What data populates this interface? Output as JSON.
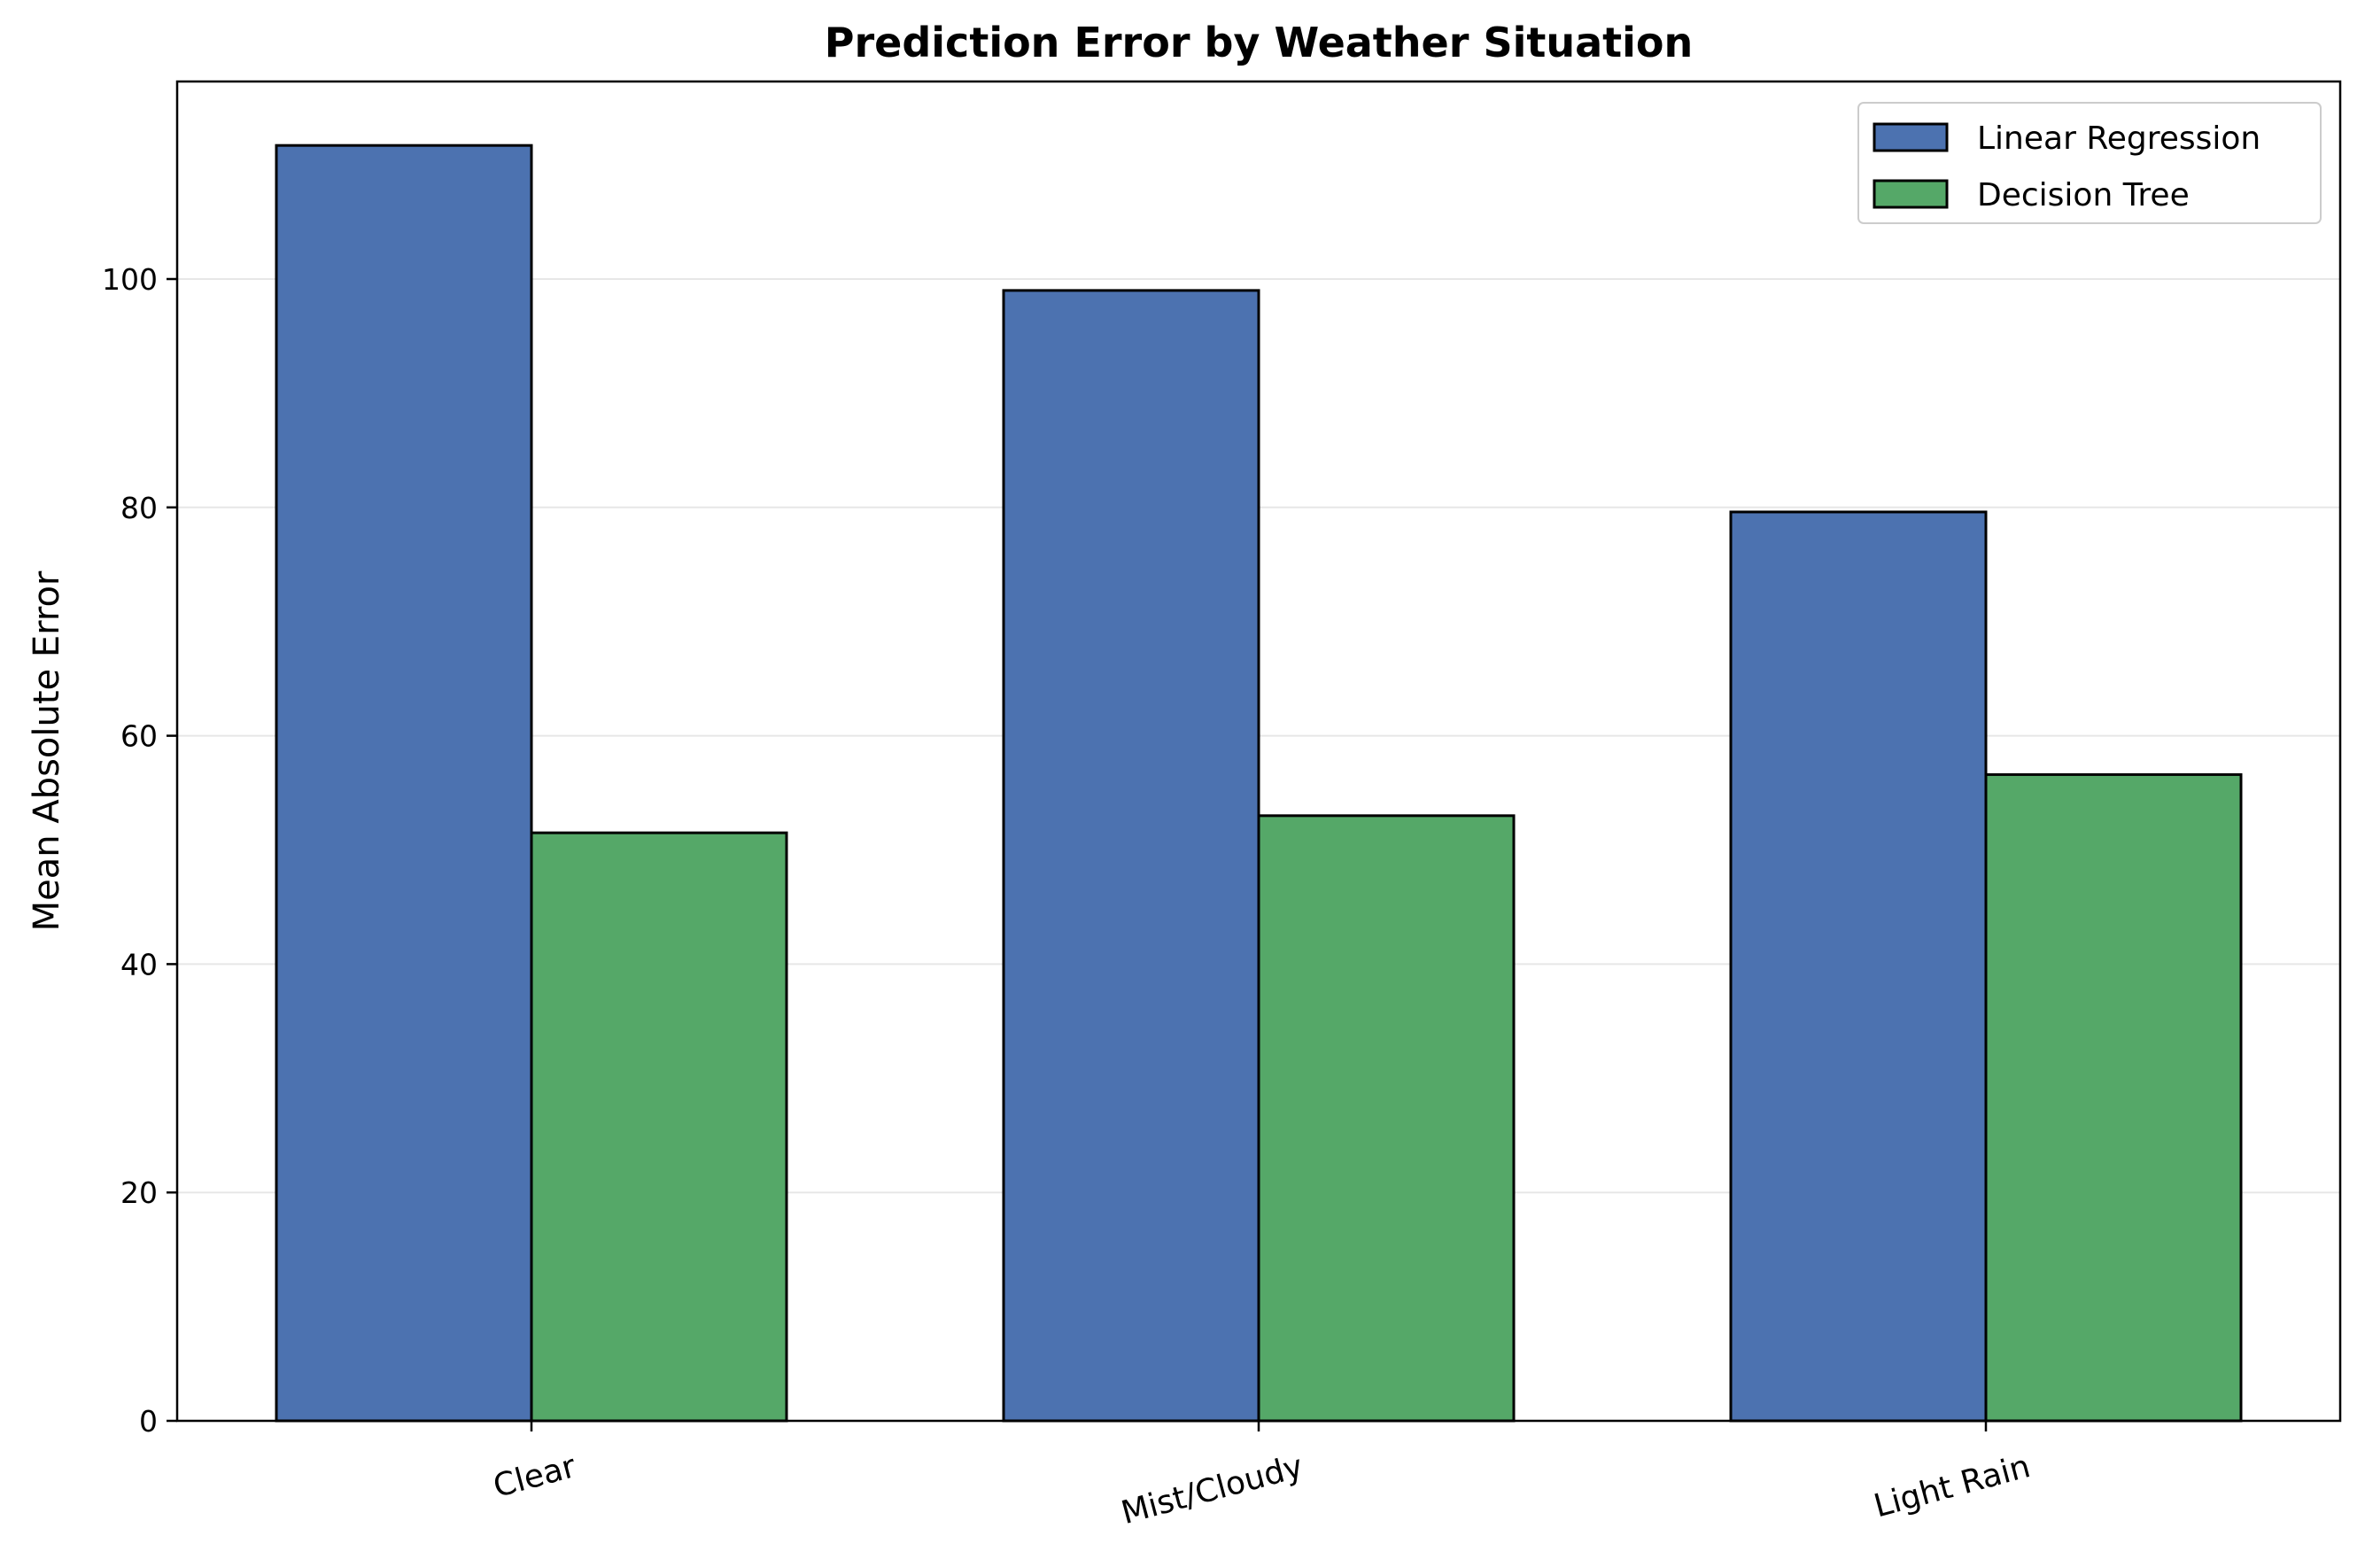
{
  "chart_data": {
    "type": "bar",
    "title": "Prediction Error by Weather Situation",
    "xlabel": "",
    "ylabel": "Mean Absolute Error",
    "categories": [
      "Clear",
      "Mist/Cloudy",
      "Light Rain"
    ],
    "series": [
      {
        "name": "Linear Regression",
        "values": [
          111.7,
          99.0,
          79.6
        ],
        "color": "#4c72b0"
      },
      {
        "name": "Decision Tree",
        "values": [
          51.5,
          53.0,
          56.6
        ],
        "color": "#55a868"
      }
    ],
    "ylim": [
      0,
      117.3
    ],
    "yticks": [
      "0",
      "20",
      "40",
      "60",
      "80",
      "100"
    ],
    "grid": "horizontal",
    "legend_position": "top-right",
    "tick_label_rotation": -15
  }
}
